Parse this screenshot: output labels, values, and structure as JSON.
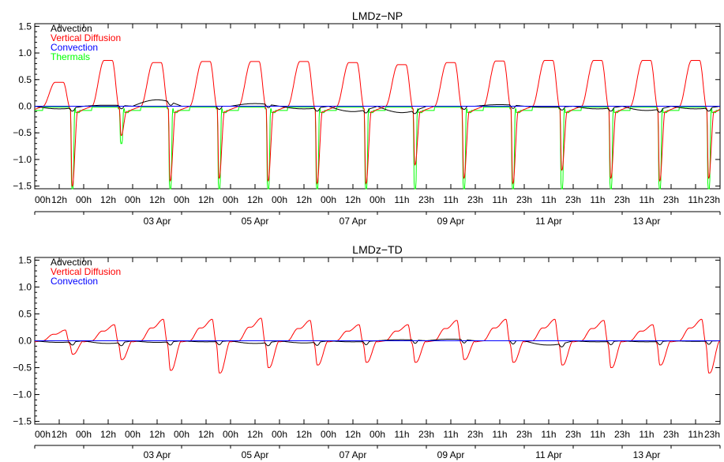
{
  "chart_data": [
    {
      "type": "line",
      "title": "LMDz−NP",
      "xlabel": "",
      "ylabel": "",
      "ylim": [
        -1.55,
        1.55
      ],
      "yticks": [
        "−1.5",
        "−1.0",
        "−0.5",
        "0.0",
        "0.5",
        "1.0",
        "1.5"
      ],
      "ytick_values": [
        -1.5,
        -1.0,
        -0.5,
        0.0,
        0.5,
        1.0,
        1.5
      ],
      "hour_ticks": [
        "00h",
        "12h",
        "00h",
        "12h",
        "00h",
        "12h",
        "00h",
        "12h",
        "00h",
        "12h",
        "00h",
        "12h",
        "00h",
        "12h",
        "00h",
        "11h",
        "23h",
        "11h",
        "23h",
        "11h",
        "23h",
        "11h",
        "23h",
        "11h",
        "23h",
        "11h",
        "23h",
        "11h",
        "23h"
      ],
      "date_labels": [
        "03 Apr",
        "05 Apr",
        "07 Apr",
        "09 Apr",
        "11 Apr",
        "13 Apr"
      ],
      "legend_position": "top-left",
      "series": [
        {
          "name": "Advection",
          "color": "#000000",
          "key": "adv"
        },
        {
          "name": "Vertical Diffusion",
          "color": "#ff0000",
          "key": "vdf"
        },
        {
          "name": "Convection",
          "color": "#0000ff",
          "key": "con"
        },
        {
          "name": "Thermals",
          "color": "#00ff00",
          "key": "thm"
        }
      ],
      "x_days": [
        0,
        14
      ],
      "daily": {
        "vdf_peak": [
          0.45,
          0.86,
          0.82,
          0.84,
          0.84,
          0.84,
          0.82,
          0.78,
          0.82,
          0.85,
          0.86,
          0.86,
          0.86,
          0.86
        ],
        "vdf_min": [
          -1.5,
          -0.55,
          -1.4,
          -1.35,
          -1.4,
          -1.45,
          -1.45,
          -1.1,
          -1.35,
          -1.45,
          -1.2,
          -1.35,
          -1.4,
          -1.35
        ],
        "thm_min": [
          -1.55,
          -0.7,
          -1.55,
          -1.55,
          -1.55,
          -1.55,
          -1.55,
          -1.55,
          -1.55,
          -1.55,
          -1.55,
          -1.55,
          -1.55,
          -1.55
        ],
        "adv_level": [
          -0.05,
          0.02,
          0.12,
          0.0,
          0.05,
          -0.05,
          -0.1,
          -0.12,
          0.0,
          0.03,
          -0.02,
          -0.05,
          -0.08,
          -0.05
        ]
      }
    },
    {
      "type": "line",
      "title": "LMDz−TD",
      "xlabel": "",
      "ylabel": "",
      "ylim": [
        -1.55,
        1.55
      ],
      "yticks": [
        "−1.5",
        "−1.0",
        "−0.5",
        "0.0",
        "0.5",
        "1.0",
        "1.5"
      ],
      "ytick_values": [
        -1.5,
        -1.0,
        -0.5,
        0.0,
        0.5,
        1.0,
        1.5
      ],
      "hour_ticks": [
        "00h",
        "12h",
        "00h",
        "12h",
        "00h",
        "12h",
        "00h",
        "12h",
        "00h",
        "12h",
        "00h",
        "12h",
        "00h",
        "12h",
        "00h",
        "11h",
        "23h",
        "11h",
        "23h",
        "11h",
        "23h",
        "11h",
        "23h",
        "11h",
        "23h",
        "11h",
        "23h",
        "11h",
        "23h"
      ],
      "date_labels": [
        "03 Apr",
        "05 Apr",
        "07 Apr",
        "09 Apr",
        "11 Apr",
        "13 Apr"
      ],
      "legend_position": "top-left",
      "series": [
        {
          "name": "Advection",
          "color": "#000000",
          "key": "adv"
        },
        {
          "name": "Vertical Diffusion",
          "color": "#ff0000",
          "key": "vdf"
        },
        {
          "name": "Convection",
          "color": "#0000ff",
          "key": "con"
        }
      ],
      "x_days": [
        0,
        14
      ],
      "daily": {
        "vdf_peak": [
          0.2,
          0.3,
          0.4,
          0.4,
          0.42,
          0.38,
          0.3,
          0.3,
          0.38,
          0.4,
          0.4,
          0.38,
          0.3,
          0.4
        ],
        "vdf_min": [
          -0.25,
          -0.35,
          -0.55,
          -0.6,
          -0.5,
          -0.45,
          -0.4,
          -0.4,
          -0.35,
          -0.4,
          -0.45,
          -0.5,
          -0.45,
          -0.6
        ],
        "adv_level": [
          -0.03,
          -0.05,
          -0.03,
          -0.02,
          -0.05,
          -0.04,
          -0.02,
          0.02,
          0.03,
          0.0,
          -0.08,
          -0.02,
          -0.02,
          -0.01
        ]
      }
    }
  ]
}
